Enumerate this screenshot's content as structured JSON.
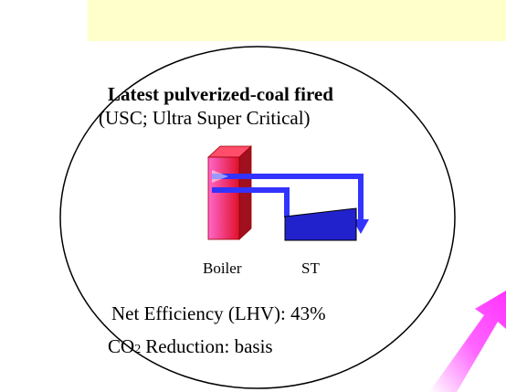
{
  "title": "Latest pulverized-coal fired",
  "subtitle": "(USC; Ultra Super Critical)",
  "nodes": [
    {
      "label": "Boiler"
    },
    {
      "label": "ST"
    }
  ],
  "efficiency": "Net Efficiency (LHV): 43%",
  "co2": {
    "prefix": "CO",
    "subscript": "2",
    "rest": "Reduction: basis"
  }
}
